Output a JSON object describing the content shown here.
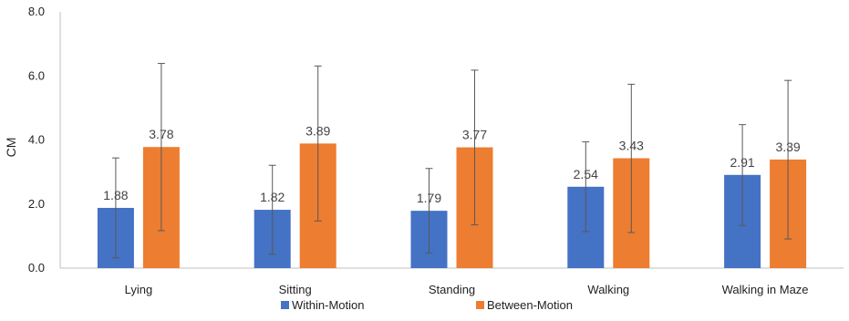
{
  "chart_data": {
    "type": "bar",
    "title": "",
    "xlabel": "",
    "ylabel": "CM",
    "ylim": [
      0,
      8
    ],
    "yticks": [
      "0.0",
      "2.0",
      "4.0",
      "6.0",
      "8.0"
    ],
    "grid": false,
    "legend_position": "bottom",
    "categories": [
      "Lying",
      "Sitting",
      "Standing",
      "Walking",
      "Walking in Maze"
    ],
    "series": [
      {
        "name": "Within-Motion",
        "color": "#4472C4",
        "values": [
          1.88,
          1.82,
          1.79,
          2.54,
          2.91
        ],
        "labels": [
          "1.88",
          "1.82",
          "1.79",
          "2.54",
          "2.91"
        ],
        "error_low": [
          0.32,
          0.43,
          0.47,
          1.14,
          1.33
        ],
        "error_high": [
          3.44,
          3.21,
          3.11,
          3.94,
          4.48
        ]
      },
      {
        "name": "Between-Motion",
        "color": "#ED7D31",
        "values": [
          3.78,
          3.89,
          3.77,
          3.43,
          3.39
        ],
        "labels": [
          "3.78",
          "3.89",
          "3.77",
          "3.43",
          "3.39"
        ],
        "error_low": [
          1.17,
          1.47,
          1.35,
          1.11,
          0.91
        ],
        "error_high": [
          6.39,
          6.31,
          6.18,
          5.74,
          5.86
        ]
      }
    ]
  }
}
